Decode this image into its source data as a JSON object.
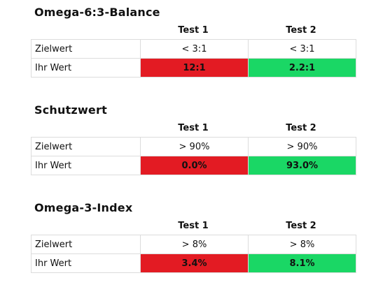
{
  "sections": [
    {
      "title": "Omega-6:3-Balance",
      "columns": [
        "Test 1",
        "Test 2"
      ],
      "rows": [
        {
          "label": "Zielwert",
          "values": [
            "< 3:1",
            "< 3:1"
          ]
        },
        {
          "label": "Ihr Wert",
          "values": [
            "12:1",
            "2.2:1"
          ]
        }
      ]
    },
    {
      "title": "Schutzwert",
      "columns": [
        "Test 1",
        "Test 2"
      ],
      "rows": [
        {
          "label": "Zielwert",
          "values": [
            "> 90%",
            "> 90%"
          ]
        },
        {
          "label": "Ihr Wert",
          "values": [
            "0.0%",
            "93.0%"
          ]
        }
      ]
    },
    {
      "title": "Omega-3-Index",
      "columns": [
        "Test 1",
        "Test 2"
      ],
      "rows": [
        {
          "label": "Zielwert",
          "values": [
            "> 8%",
            "> 8%"
          ]
        },
        {
          "label": "Ihr Wert",
          "values": [
            "3.4%",
            "8.1%"
          ]
        }
      ]
    }
  ],
  "status_colors": {
    "out_of_range": "#e31b23",
    "in_range": "#1ad765"
  }
}
